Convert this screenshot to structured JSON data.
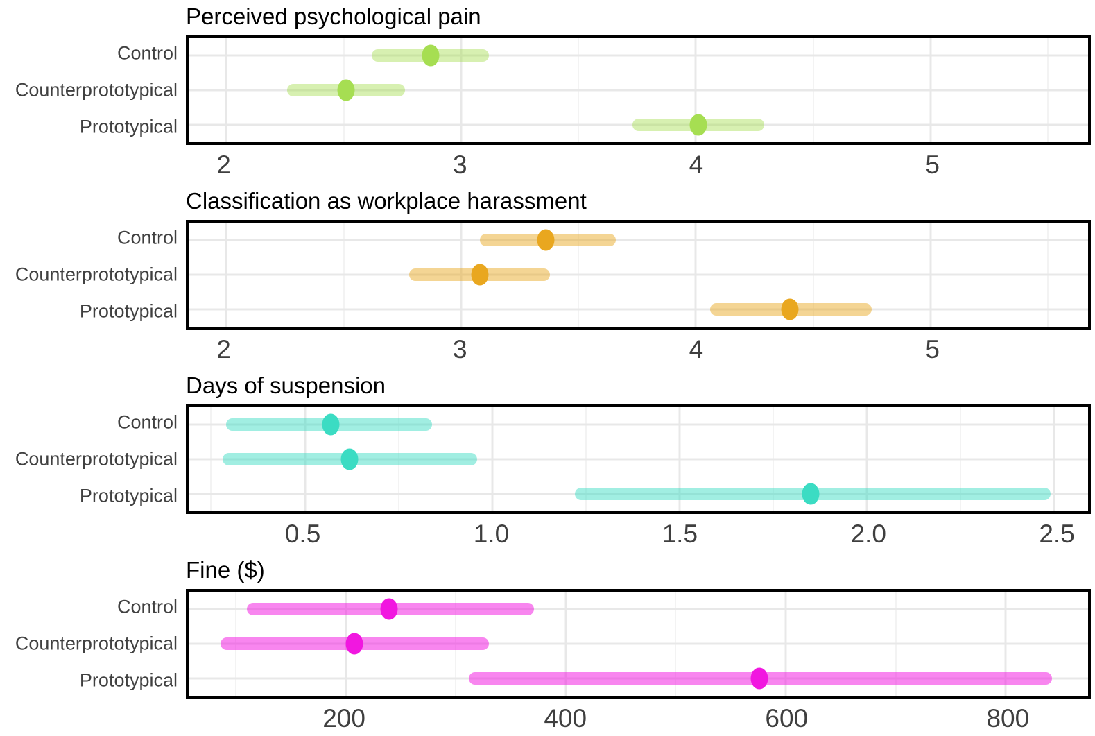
{
  "colors": {
    "background": "#ffffff",
    "panel_border": "#000000",
    "grid_major": "#e8e8e8",
    "grid_minor": "#f3f3f3",
    "title_text": "#000000",
    "row_label_text": "#404040",
    "tick_text": "#3f3f3f"
  },
  "row_y_percents": [
    16.7,
    50,
    83.3
  ],
  "chart_data": [
    {
      "type": "scatter",
      "subtype": "point-interval",
      "title": "Perceived psychological pain",
      "point_color": "#A6DE52",
      "bar_color": "rgba(166,222,82,0.45)",
      "xlim": [
        1.84,
        5.67
      ],
      "ticks": [
        {
          "v": 2,
          "label": "2"
        },
        {
          "v": 3,
          "label": "3"
        },
        {
          "v": 4,
          "label": "4"
        },
        {
          "v": 5,
          "label": "5"
        }
      ],
      "minor_ticks": [
        2.5,
        3.5,
        4.5,
        5.5
      ],
      "rows": [
        {
          "label": "Control",
          "point": 2.87,
          "lo": 2.62,
          "hi": 3.12
        },
        {
          "label": "Counterprototypical",
          "point": 2.51,
          "lo": 2.26,
          "hi": 2.76
        },
        {
          "label": "Prototypical",
          "point": 4.01,
          "lo": 3.73,
          "hi": 4.29
        }
      ]
    },
    {
      "type": "scatter",
      "subtype": "point-interval",
      "title": "Classification as workplace harassment",
      "point_color": "#E9A71F",
      "bar_color": "rgba(233,167,31,0.48)",
      "xlim": [
        1.84,
        5.67
      ],
      "ticks": [
        {
          "v": 2,
          "label": "2"
        },
        {
          "v": 3,
          "label": "3"
        },
        {
          "v": 4,
          "label": "4"
        },
        {
          "v": 5,
          "label": "5"
        }
      ],
      "minor_ticks": [
        2.5,
        3.5,
        4.5,
        5.5
      ],
      "rows": [
        {
          "label": "Control",
          "point": 3.36,
          "lo": 3.08,
          "hi": 3.66
        },
        {
          "label": "Counterprototypical",
          "point": 3.08,
          "lo": 2.78,
          "hi": 3.38
        },
        {
          "label": "Prototypical",
          "point": 4.4,
          "lo": 4.06,
          "hi": 4.75
        }
      ]
    },
    {
      "type": "scatter",
      "subtype": "point-interval",
      "title": "Days of suspension",
      "point_color": "#3BDCC3",
      "bar_color": "rgba(59,220,195,0.48)",
      "xlim": [
        0.19,
        2.59
      ],
      "ticks": [
        {
          "v": 0.5,
          "label": "0.5"
        },
        {
          "v": 1.0,
          "label": "1.0"
        },
        {
          "v": 1.5,
          "label": "1.5"
        },
        {
          "v": 2.0,
          "label": "2.0"
        },
        {
          "v": 2.5,
          "label": "2.5"
        }
      ],
      "minor_ticks": [
        0.25,
        0.75,
        1.25,
        1.75,
        2.25
      ],
      "rows": [
        {
          "label": "Control",
          "point": 0.57,
          "lo": 0.29,
          "hi": 0.84
        },
        {
          "label": "Counterprototypical",
          "point": 0.62,
          "lo": 0.28,
          "hi": 0.96
        },
        {
          "label": "Prototypical",
          "point": 1.85,
          "lo": 1.22,
          "hi": 2.49
        }
      ]
    },
    {
      "type": "scatter",
      "subtype": "point-interval",
      "title": "Fine ($)",
      "point_color": "#F117E0",
      "bar_color": "rgba(241,23,224,0.52)",
      "xlim": [
        57,
        875
      ],
      "ticks": [
        {
          "v": 200,
          "label": "200"
        },
        {
          "v": 400,
          "label": "400"
        },
        {
          "v": 600,
          "label": "600"
        },
        {
          "v": 800,
          "label": "800"
        }
      ],
      "minor_ticks": [
        100,
        300,
        500,
        700
      ],
      "rows": [
        {
          "label": "Control",
          "point": 239,
          "lo": 110,
          "hi": 371
        },
        {
          "label": "Counterprototypical",
          "point": 208,
          "lo": 86,
          "hi": 330
        },
        {
          "label": "Prototypical",
          "point": 576,
          "lo": 312,
          "hi": 842
        }
      ]
    }
  ]
}
